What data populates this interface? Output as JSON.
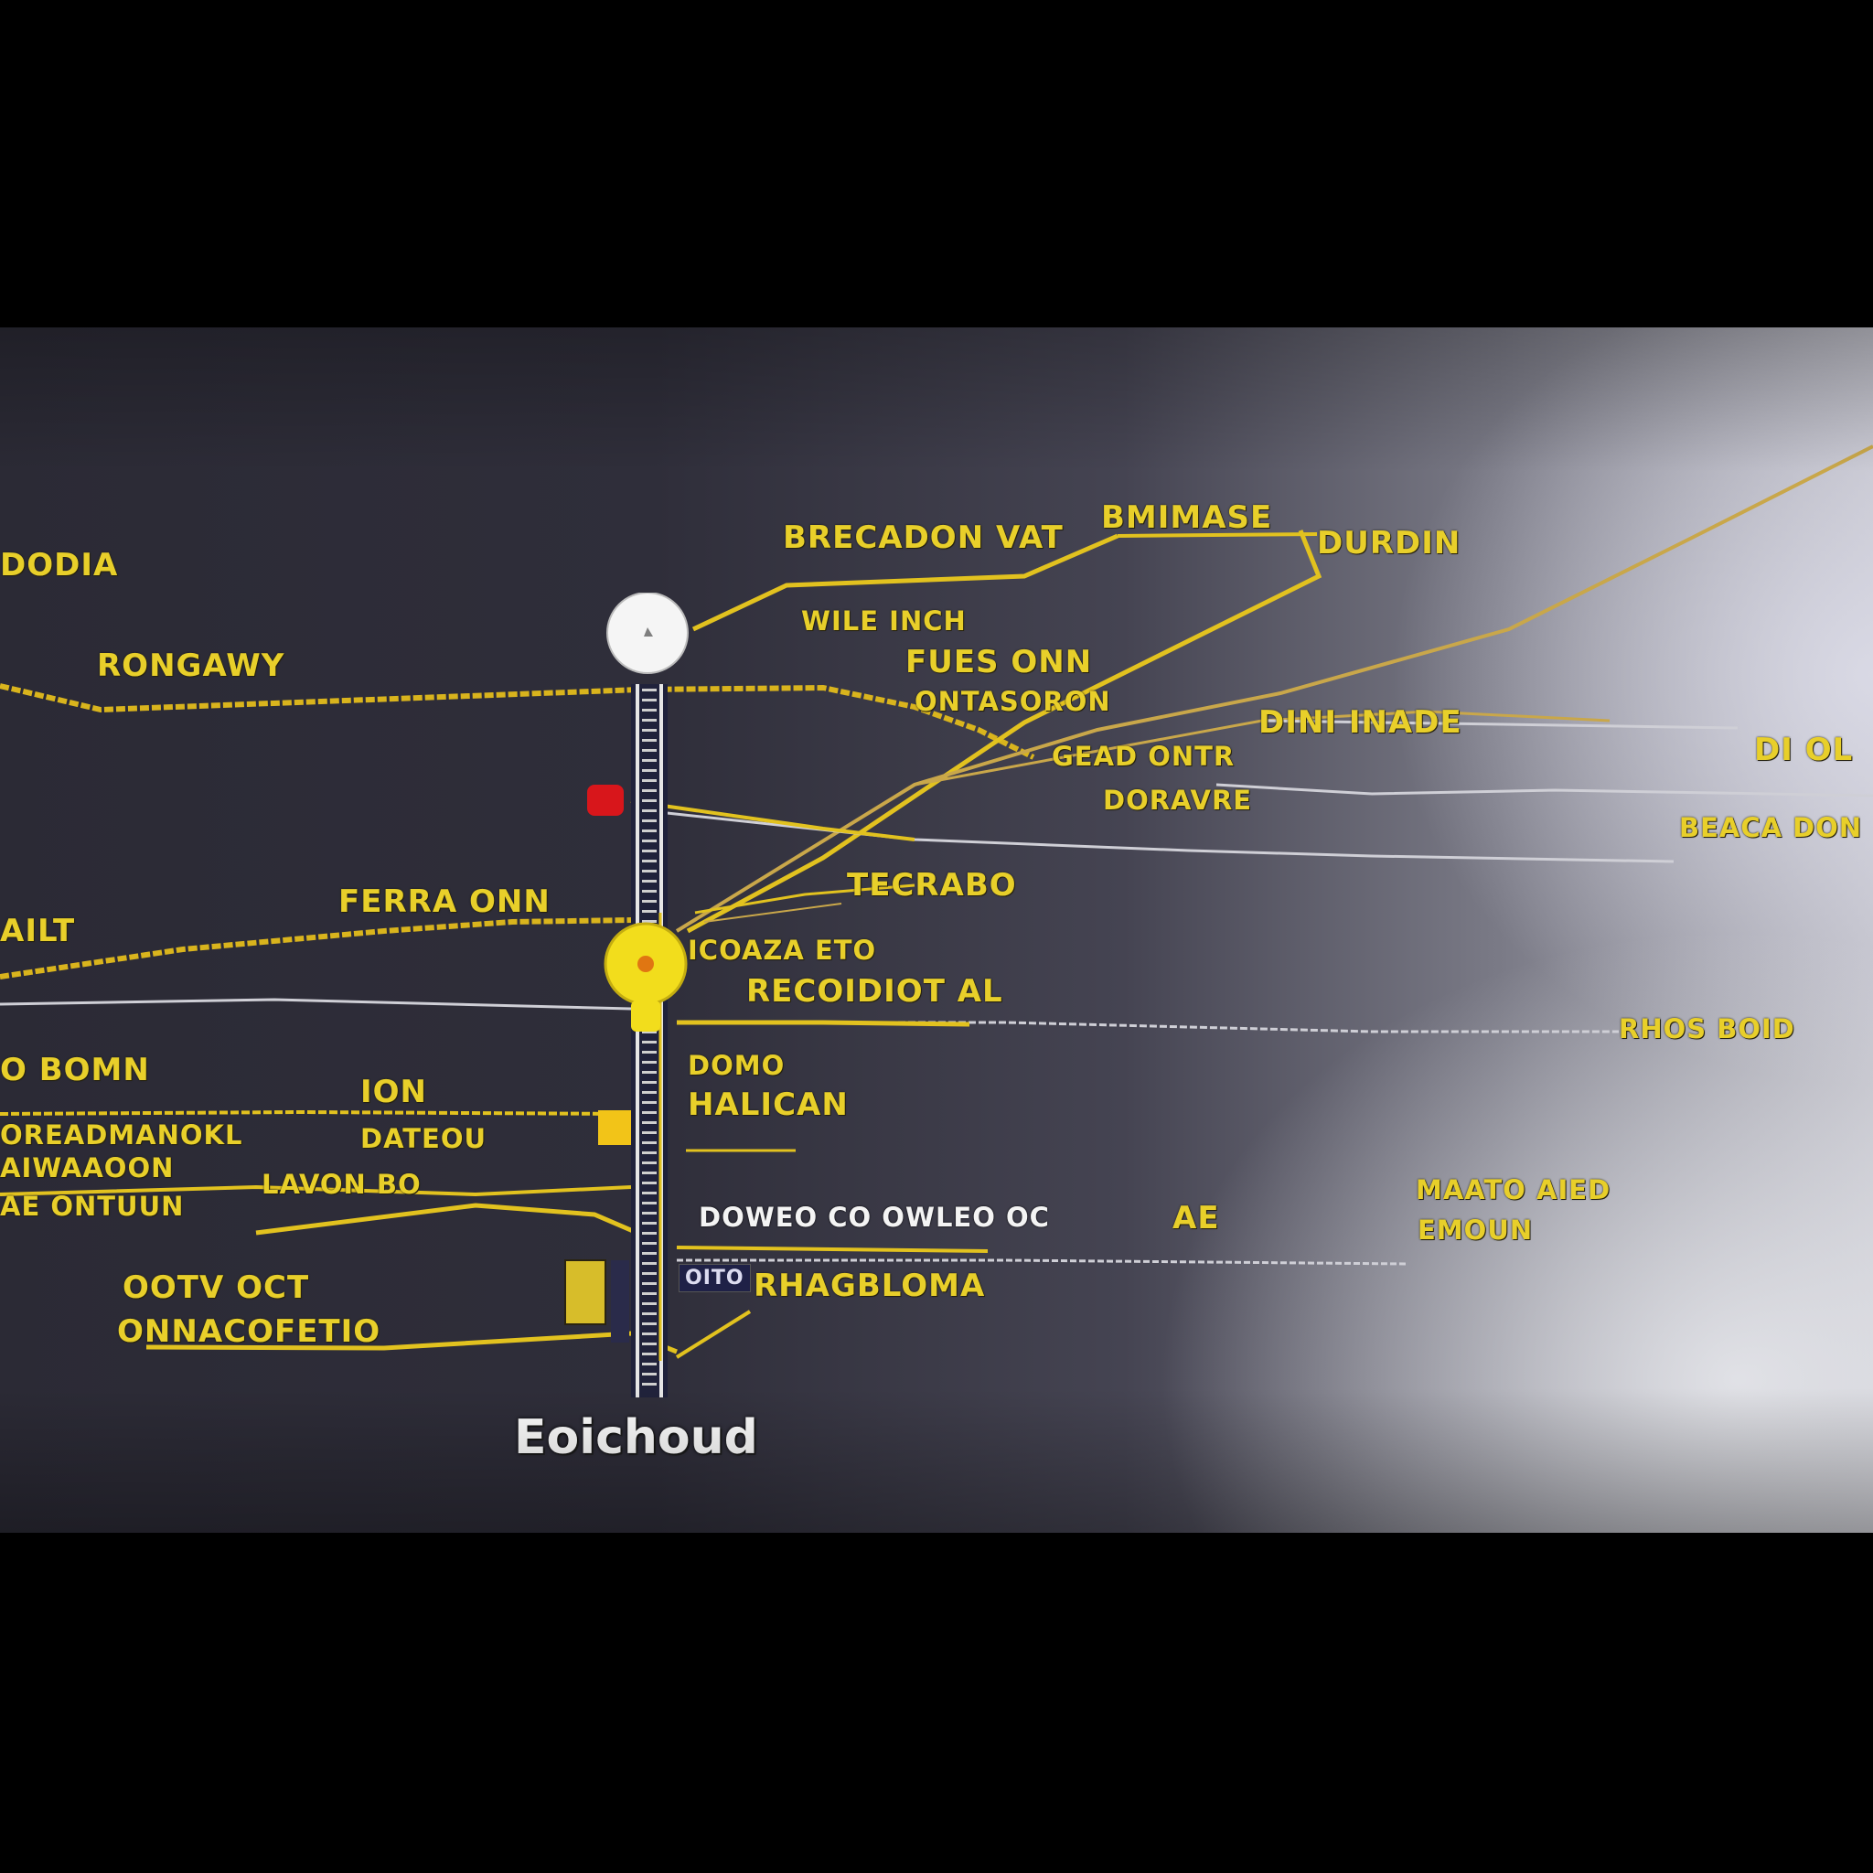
{
  "map": {
    "colors": {
      "road": "#e2c21f",
      "thin_road": "#c9a74a",
      "light_line": "#cfcfd6",
      "label": "#e8cf2a",
      "marker_yellow": "#f2dd1c",
      "marker_white": "#f5f5f5",
      "marker_red": "#d8161b"
    },
    "labels": {
      "top_left": "DODIA",
      "rongawy": "RONGAWY",
      "brecadon": "BRECADON VAT",
      "bmimase": "BMIMASE",
      "durom": "DURDIN",
      "wileinch": "WILE INCH",
      "fuesonn": "FUES ONN",
      "ontasoron": "ONTASORON",
      "dini_inade": "DINI INADE",
      "di_ol": "DI OL",
      "geadcontr": "GEAD ONTR",
      "doravre": "DORAVRE",
      "beaca_don": "BEACA DON",
      "ferra_onn": "FERRA ONN",
      "ailt": "AILT",
      "tecrabo": "TECRABO",
      "icoaza_eto": "ICOAZA ETO",
      "recoidiot": "RECOIDIOT AL",
      "rhos_boid": "RHOS BOID",
      "o_bom": "O BOMN",
      "oreadman": "OREADMANOKL",
      "ion": "ION",
      "dateou": "DATEOU",
      "domo": "DOMO",
      "halican": "HALICAN",
      "aiwaaon": "AIWAAOON",
      "ae_ontuun": "AE ONTUUN",
      "lavon_bo": "LAVON BO",
      "ootv_oct": "OOTV OCT",
      "onnacofetio": "ONNACOFETIO",
      "white_street": "DOWEO CO OWLEO OC",
      "ae": "AE",
      "maato": "MAATO AIED",
      "emoun": "EMOUN",
      "tag_road": "OITO",
      "rhagbloma": "RHAGBLOMA",
      "footer": "Eoichoud"
    }
  }
}
